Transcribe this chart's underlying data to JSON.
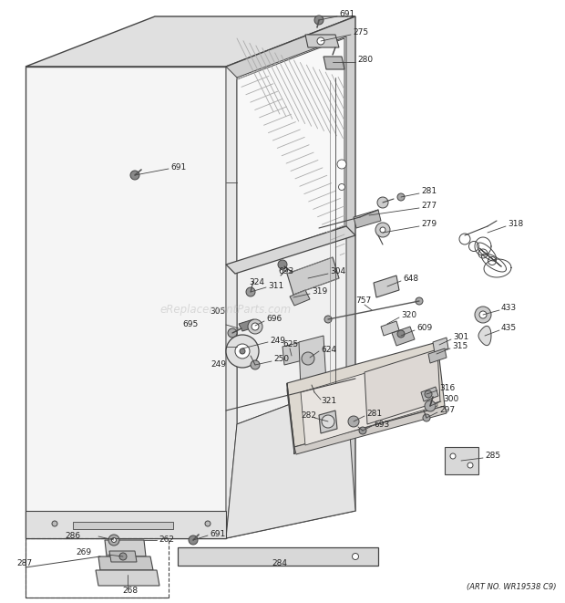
{
  "art_no": "(ART NO. WR19538 C9)",
  "watermark": "eReplacementParts.com",
  "bg_color": "#ffffff",
  "line_color": "#444444",
  "text_color": "#222222",
  "gray1": "#e8e8e8",
  "gray2": "#d4d4d4",
  "gray3": "#bbbbbb",
  "gray4": "#f2f2f2",
  "hatch_color": "#999999"
}
